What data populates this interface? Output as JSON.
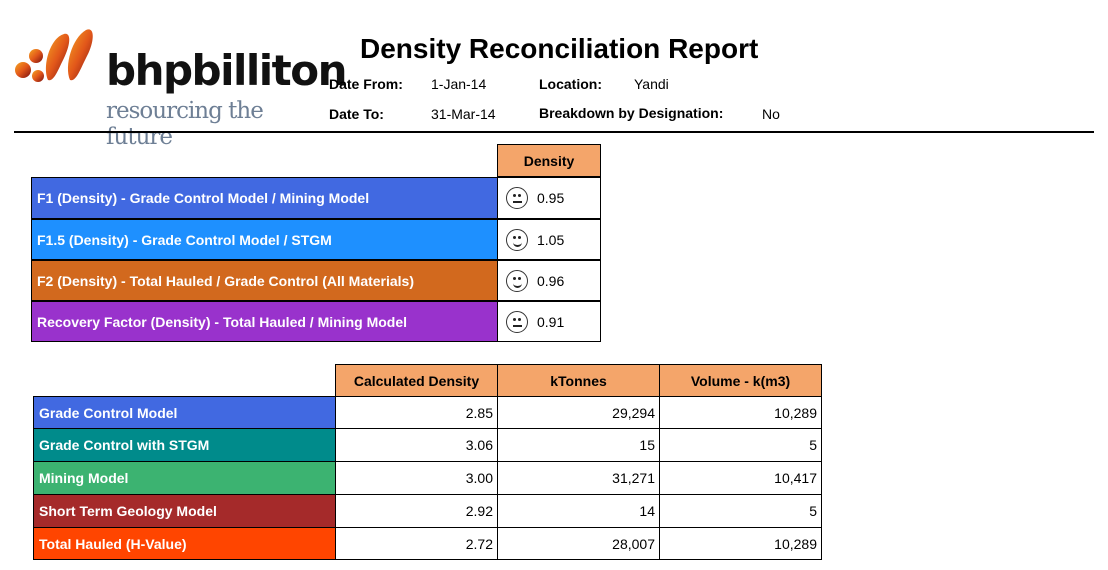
{
  "logo": {
    "brand": "bhpbilliton",
    "tagline": "resourcing the future"
  },
  "report": {
    "title": "Density Reconciliation Report",
    "date_from_label": "Date From:",
    "date_from": "1-Jan-14",
    "date_to_label": "Date To:",
    "date_to": "31-Mar-14",
    "location_label": "Location:",
    "location": "Yandi",
    "breakdown_label": "Breakdown by Designation:",
    "breakdown": "No"
  },
  "factors": {
    "header": "Density",
    "rows": [
      {
        "label": "F1 (Density) - Grade Control Model / Mining Model",
        "value": "0.95",
        "status": "orange",
        "color": "#4169e1"
      },
      {
        "label": "F1.5 (Density) - Grade Control Model / STGM",
        "value": "1.05",
        "status": "green",
        "color": "#1e90ff"
      },
      {
        "label": "F2 (Density) - Total Hauled / Grade Control (All Materials)",
        "value": "0.96",
        "status": "green",
        "color": "#d2691e"
      },
      {
        "label": "Recovery Factor (Density) - Total Hauled / Mining Model",
        "value": "0.91",
        "status": "orange",
        "color": "#9932cc"
      }
    ]
  },
  "models": {
    "headers": [
      "Calculated Density",
      "kTonnes",
      "Volume - k(m3)"
    ],
    "rows": [
      {
        "label": "Grade Control Model",
        "color": "#4169e1",
        "values": [
          "2.85",
          "29,294",
          "10,289"
        ]
      },
      {
        "label": "Grade Control with STGM",
        "color": "#008b8b",
        "values": [
          "3.06",
          "15",
          "5"
        ]
      },
      {
        "label": "Mining Model",
        "color": "#3cb371",
        "values": [
          "3.00",
          "31,271",
          "10,417"
        ]
      },
      {
        "label": "Short Term Geology Model",
        "color": "#a52a2a",
        "values": [
          "2.92",
          "14",
          "5"
        ]
      },
      {
        "label": "Total Hauled (H-Value)",
        "color": "#ff4500",
        "values": [
          "2.72",
          "28,007",
          "10,289"
        ]
      }
    ]
  }
}
